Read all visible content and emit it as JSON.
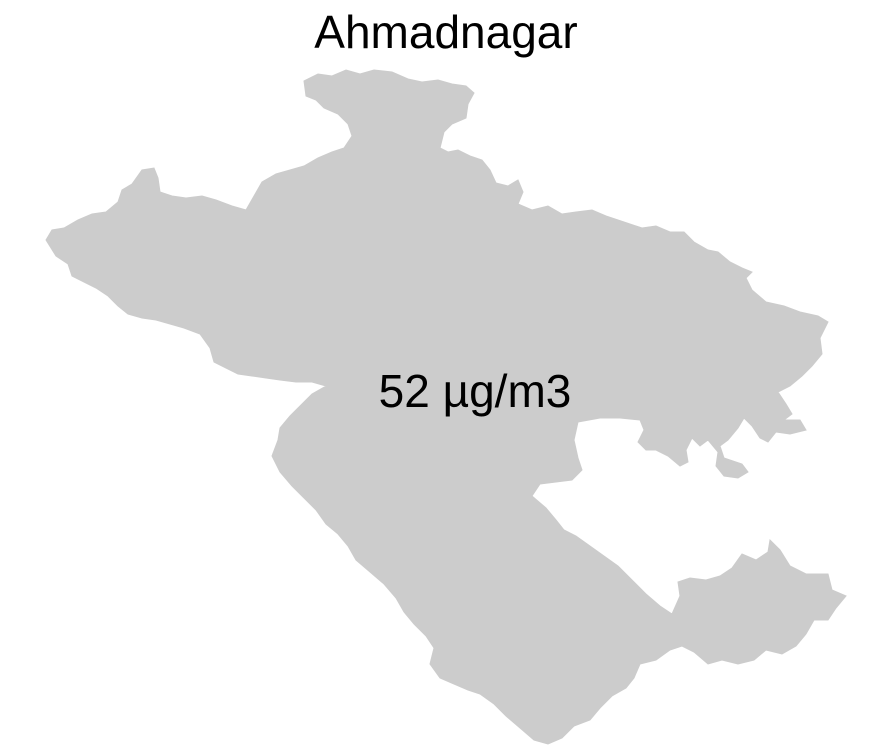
{
  "map": {
    "title": "Ahmadnagar",
    "region_fill": "#cccccc",
    "region_stroke": "#cccccc",
    "value_label": "52 µg/m3"
  }
}
